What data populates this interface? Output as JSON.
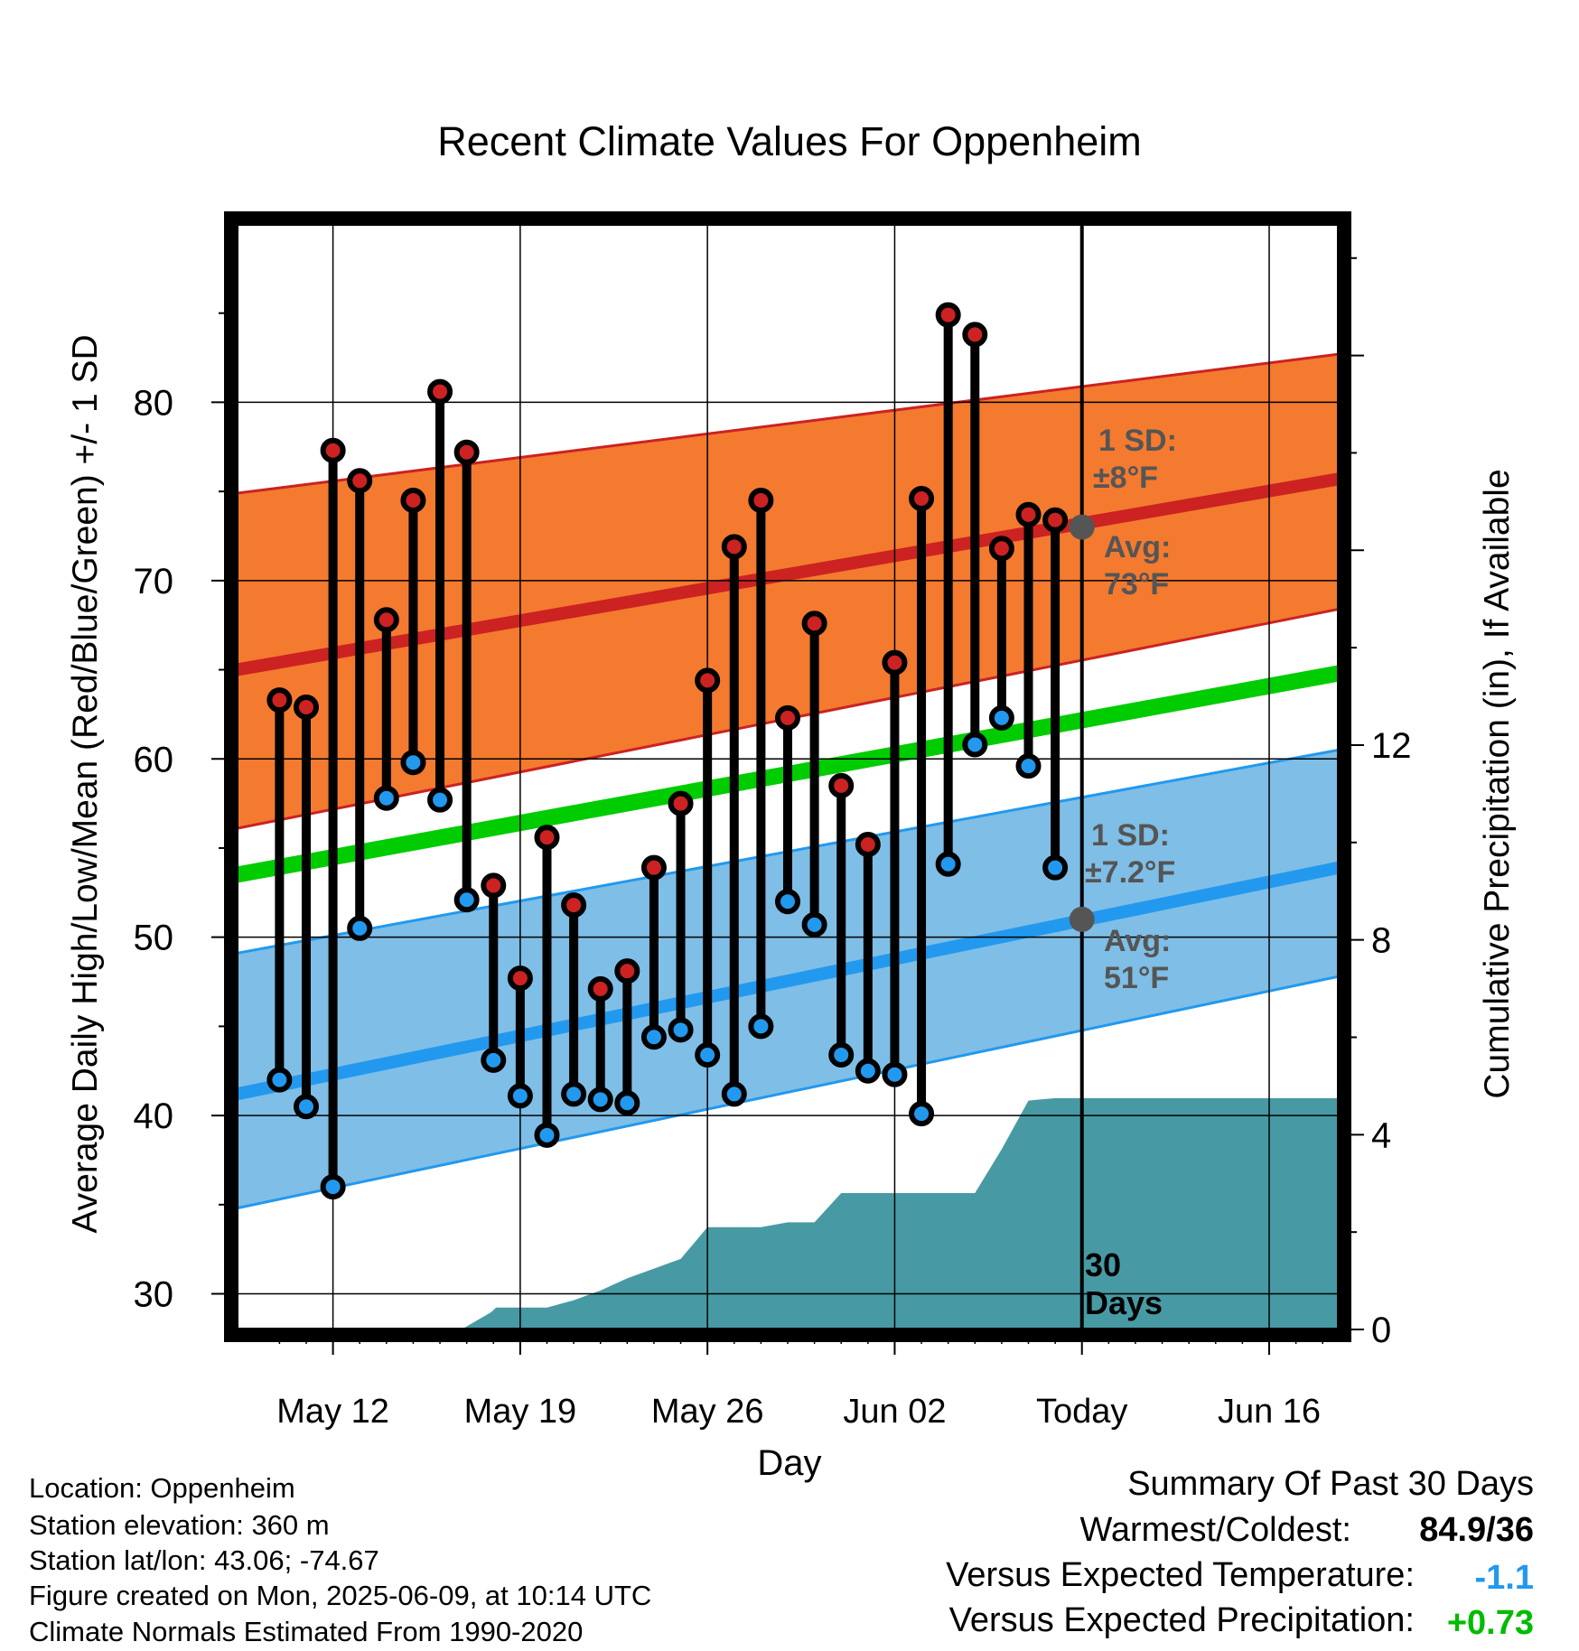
{
  "chart_data": {
    "type": "line",
    "title": "Recent Climate Values For Oppenheim",
    "xlabel": "Day",
    "ylabel": "Average Daily High/Low/Mean (Red/Blue/Green) +/- 1 SD",
    "y2label": "Cumulative Precipitation (in), If Available",
    "ylim": [
      28,
      90
    ],
    "y2lim": [
      0,
      22.7
    ],
    "yticks": [
      30,
      40,
      50,
      60,
      70,
      80
    ],
    "y2ticks": [
      0,
      4,
      8,
      12
    ],
    "x_tick_labels": [
      "May 12",
      "May 19",
      "May 26",
      "Jun 02",
      "Today",
      "Jun 16"
    ],
    "x_tick_days": [
      12,
      19,
      26,
      33,
      40,
      47
    ],
    "xlim": [
      8.4,
      49.6
    ],
    "grid": true,
    "today_label": [
      "30",
      "Days"
    ],
    "days": [
      10,
      11,
      12,
      13,
      14,
      15,
      16,
      17,
      18,
      19,
      20,
      21,
      22,
      23,
      24,
      25,
      26,
      27,
      28,
      29,
      30,
      31,
      32,
      33,
      34,
      35,
      36,
      37,
      38,
      39
    ],
    "highs": [
      63.3,
      62.9,
      77.3,
      75.6,
      67.8,
      74.5,
      80.6,
      77.2,
      52.9,
      47.7,
      55.6,
      51.8,
      47.1,
      48.1,
      53.9,
      57.5,
      64.4,
      71.9,
      74.5,
      62.3,
      67.6,
      58.5,
      55.2,
      65.4,
      74.6,
      84.9,
      83.8,
      71.8,
      73.7,
      73.4
    ],
    "lows": [
      42.0,
      40.5,
      36.0,
      50.5,
      57.8,
      59.8,
      57.7,
      52.1,
      43.1,
      41.1,
      38.9,
      41.2,
      40.9,
      40.7,
      44.4,
      44.8,
      43.4,
      41.2,
      45.0,
      52.0,
      50.7,
      43.4,
      42.5,
      42.3,
      40.1,
      54.1,
      60.8,
      62.3,
      59.6,
      53.9
    ],
    "normal_high": {
      "start": 65.0,
      "end": 75.7,
      "sd_label": "1 SD:",
      "sd_value": "±8°F",
      "avg_label": "Avg:",
      "avg_value": "73°F",
      "today_value": 73
    },
    "normal_low": {
      "start": 41.2,
      "end": 53.9,
      "sd_label": "1 SD:",
      "sd_value": "±7.2°F",
      "avg_label": "Avg:",
      "avg_value": "51°F",
      "today_value": 51
    },
    "normal_mean": {
      "start": 53.5,
      "end": 64.8
    },
    "high_band": {
      "upper_start": 74.9,
      "upper_end": 82.7,
      "lower_start": 56.1,
      "lower_end": 68.4
    },
    "low_band": {
      "upper_start": 49.1,
      "upper_end": 60.5,
      "lower_start": 34.8,
      "lower_end": 47.8
    },
    "precip_cum": {
      "days": [
        8.4,
        15.0,
        16.8,
        17.9,
        18.1,
        19.0,
        20.0,
        21.0,
        22.0,
        23.0,
        24.0,
        25.0,
        26.0,
        27.0,
        28.0,
        29.0,
        30.0,
        31.0,
        32.0,
        33.0,
        34.0,
        35.0,
        36.0,
        37.0,
        38.0,
        39.0,
        40.0,
        49.6
      ],
      "values": [
        0,
        0,
        0,
        0.35,
        0.45,
        0.45,
        0.45,
        0.6,
        0.8,
        1.05,
        1.25,
        1.45,
        2.1,
        2.1,
        2.1,
        2.2,
        2.2,
        2.8,
        2.8,
        2.8,
        2.8,
        2.8,
        2.8,
        3.7,
        4.7,
        4.75,
        4.75,
        4.75
      ]
    },
    "colors": {
      "high": "#cc2222",
      "low": "#2299ee",
      "mean": "#00cc00",
      "high_band": "#f37a2f",
      "low_band": "#7fbee6",
      "precip": "#479aa3",
      "avg_marker": "#555555"
    }
  },
  "footer": {
    "location": "Location: Oppenheim",
    "elevation": "Station elevation: 360 m",
    "latlon": "Station lat/lon: 43.06; -74.67",
    "created": "Figure created on Mon, 2025-06-09, at 10:14 UTC",
    "normals": "Climate Normals Estimated From 1990-2020"
  },
  "summary": {
    "title": "Summary Of Past 30 Days",
    "warmest_label": "Warmest/Coldest:",
    "warmest_value": "84.9/36",
    "temp_label": "Versus Expected Temperature:",
    "temp_value": "-1.1",
    "precip_label": "Versus Expected Precipitation:",
    "precip_value": "+0.73",
    "temp_color": "#2299ee",
    "precip_color": "#00bb00"
  }
}
